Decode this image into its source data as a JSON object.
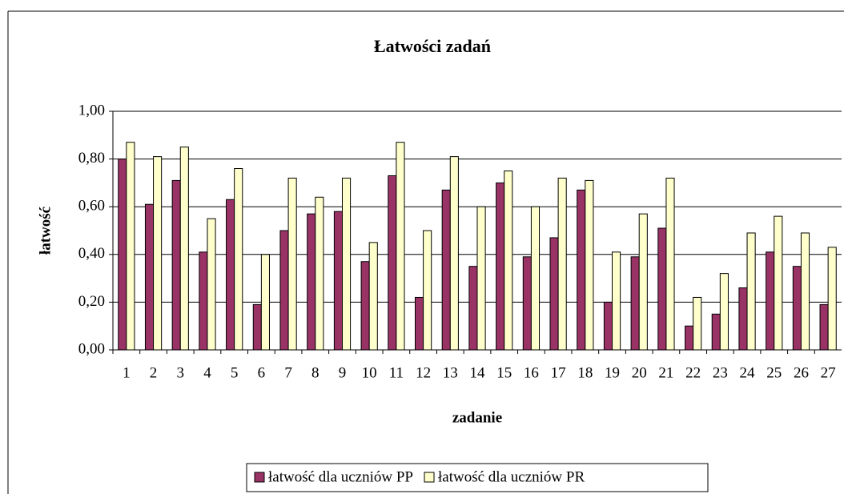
{
  "chart_data": {
    "type": "bar",
    "title": "Łatwości zadań",
    "x_label": "zadanie",
    "y_label": "łatwość",
    "categories": [
      "1",
      "2",
      "3",
      "4",
      "5",
      "6",
      "7",
      "8",
      "9",
      "10",
      "11",
      "12",
      "13",
      "14",
      "15",
      "16",
      "17",
      "18",
      "19",
      "20",
      "21",
      "22",
      "23",
      "24",
      "25",
      "26",
      "27"
    ],
    "series": [
      {
        "name": "łatwość dla uczniów PP",
        "color": "#993366",
        "values": [
          0.8,
          0.61,
          0.71,
          0.41,
          0.63,
          0.19,
          0.5,
          0.57,
          0.58,
          0.37,
          0.73,
          0.22,
          0.67,
          0.35,
          0.7,
          0.39,
          0.47,
          0.67,
          0.2,
          0.39,
          0.51,
          0.1,
          0.15,
          0.26,
          0.41,
          0.35,
          0.19
        ]
      },
      {
        "name": "łatwość dla uczniów PR",
        "color": "#ffffcc",
        "values": [
          0.87,
          0.81,
          0.85,
          0.55,
          0.76,
          0.4,
          0.72,
          0.64,
          0.72,
          0.45,
          0.87,
          0.5,
          0.81,
          0.6,
          0.75,
          0.6,
          0.72,
          0.71,
          0.41,
          0.57,
          0.72,
          0.22,
          0.32,
          0.49,
          0.56,
          0.49,
          0.43
        ]
      }
    ],
    "ylim": [
      0,
      1
    ],
    "yticks": [
      {
        "value": 0,
        "label": "0,00"
      },
      {
        "value": 0.2,
        "label": "0,20"
      },
      {
        "value": 0.4,
        "label": "0,40"
      },
      {
        "value": 0.6,
        "label": "0,60"
      },
      {
        "value": 0.8,
        "label": "0,80"
      },
      {
        "value": 1,
        "label": "1,00"
      }
    ],
    "grid": true,
    "legend": "bottom"
  }
}
